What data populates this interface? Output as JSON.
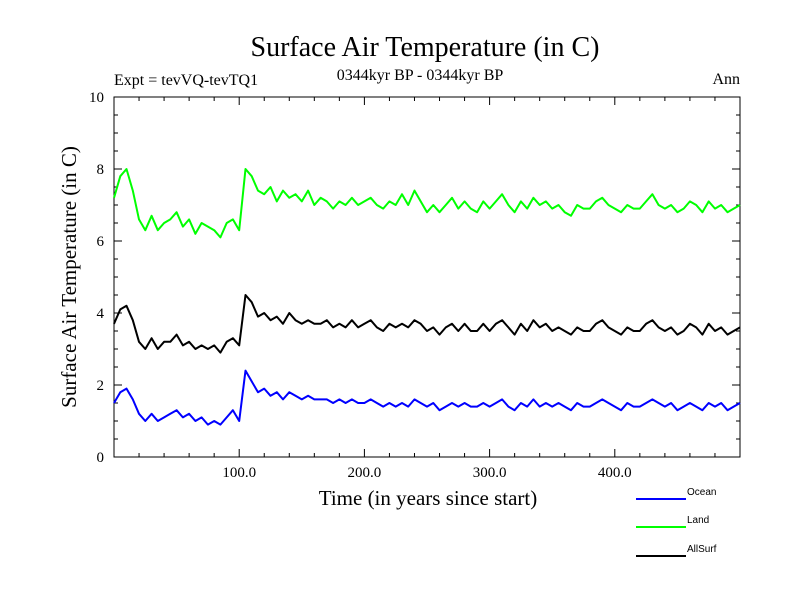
{
  "header": {
    "title": "Surface Air Temperature (in C)",
    "experiment": "Expt = tevVQ-tevTQ1",
    "period": "0344kyr BP - 0344kyr BP",
    "season": "Ann"
  },
  "chart_data": {
    "type": "line",
    "title": "Surface Air Temperature (in C)",
    "xlabel": "Time (in years since start)",
    "ylabel": "Surface Air Temperature (in C)",
    "xlim": [
      0,
      500
    ],
    "ylim": [
      0,
      10
    ],
    "x_ticks": [
      100,
      200,
      300,
      400
    ],
    "x_tick_labels": [
      "100.0",
      "200.0",
      "300.0",
      "400.0"
    ],
    "y_ticks": [
      0,
      2,
      4,
      6,
      8,
      10
    ],
    "y_tick_labels": [
      "0",
      "2",
      "4",
      "6",
      "8",
      "10"
    ],
    "grid": false,
    "legend_position": "bottom-right",
    "x": [
      0,
      5,
      10,
      15,
      20,
      25,
      30,
      35,
      40,
      45,
      50,
      55,
      60,
      65,
      70,
      75,
      80,
      85,
      90,
      95,
      100,
      105,
      110,
      115,
      120,
      125,
      130,
      135,
      140,
      145,
      150,
      155,
      160,
      165,
      170,
      175,
      180,
      185,
      190,
      195,
      200,
      205,
      210,
      215,
      220,
      225,
      230,
      235,
      240,
      245,
      250,
      255,
      260,
      265,
      270,
      275,
      280,
      285,
      290,
      295,
      300,
      305,
      310,
      315,
      320,
      325,
      330,
      335,
      340,
      345,
      350,
      355,
      360,
      365,
      370,
      375,
      380,
      385,
      390,
      395,
      400,
      405,
      410,
      415,
      420,
      425,
      430,
      435,
      440,
      445,
      450,
      455,
      460,
      465,
      470,
      475,
      480,
      485,
      490,
      495,
      500
    ],
    "series": [
      {
        "name": "Ocean",
        "color": "#0000ff",
        "values": [
          1.5,
          1.8,
          1.9,
          1.6,
          1.2,
          1.0,
          1.2,
          1.0,
          1.1,
          1.2,
          1.3,
          1.1,
          1.2,
          1.0,
          1.1,
          0.9,
          1.0,
          0.9,
          1.1,
          1.3,
          1.0,
          2.4,
          2.1,
          1.8,
          1.9,
          1.7,
          1.8,
          1.6,
          1.8,
          1.7,
          1.6,
          1.7,
          1.6,
          1.6,
          1.6,
          1.5,
          1.6,
          1.5,
          1.6,
          1.5,
          1.5,
          1.6,
          1.5,
          1.4,
          1.5,
          1.4,
          1.5,
          1.4,
          1.6,
          1.5,
          1.4,
          1.5,
          1.3,
          1.4,
          1.5,
          1.4,
          1.5,
          1.4,
          1.4,
          1.5,
          1.4,
          1.5,
          1.6,
          1.4,
          1.3,
          1.5,
          1.4,
          1.6,
          1.4,
          1.5,
          1.4,
          1.5,
          1.4,
          1.3,
          1.5,
          1.4,
          1.4,
          1.5,
          1.6,
          1.5,
          1.4,
          1.3,
          1.5,
          1.4,
          1.4,
          1.5,
          1.6,
          1.5,
          1.4,
          1.5,
          1.3,
          1.4,
          1.5,
          1.4,
          1.3,
          1.5,
          1.4,
          1.5,
          1.3,
          1.4,
          1.5
        ]
      },
      {
        "name": "Land",
        "color": "#00ff00",
        "values": [
          7.2,
          7.8,
          8.0,
          7.4,
          6.6,
          6.3,
          6.7,
          6.3,
          6.5,
          6.6,
          6.8,
          6.4,
          6.6,
          6.2,
          6.5,
          6.4,
          6.3,
          6.1,
          6.5,
          6.6,
          6.3,
          8.0,
          7.8,
          7.4,
          7.3,
          7.5,
          7.1,
          7.4,
          7.2,
          7.3,
          7.1,
          7.4,
          7.0,
          7.2,
          7.1,
          6.9,
          7.1,
          7.0,
          7.2,
          7.0,
          7.1,
          7.2,
          7.0,
          6.9,
          7.1,
          7.0,
          7.3,
          7.0,
          7.4,
          7.1,
          6.8,
          7.0,
          6.8,
          7.0,
          7.2,
          6.9,
          7.1,
          6.9,
          6.8,
          7.1,
          6.9,
          7.1,
          7.3,
          7.0,
          6.8,
          7.1,
          6.9,
          7.2,
          7.0,
          7.1,
          6.9,
          7.0,
          6.8,
          6.7,
          7.0,
          6.9,
          6.9,
          7.1,
          7.2,
          7.0,
          6.9,
          6.8,
          7.0,
          6.9,
          6.9,
          7.1,
          7.3,
          7.0,
          6.9,
          7.0,
          6.8,
          6.9,
          7.1,
          7.0,
          6.8,
          7.1,
          6.9,
          7.0,
          6.8,
          6.9,
          7.0
        ]
      },
      {
        "name": "AllSurf",
        "color": "#000000",
        "values": [
          3.7,
          4.1,
          4.2,
          3.8,
          3.2,
          3.0,
          3.3,
          3.0,
          3.2,
          3.2,
          3.4,
          3.1,
          3.2,
          3.0,
          3.1,
          3.0,
          3.1,
          2.9,
          3.2,
          3.3,
          3.1,
          4.5,
          4.3,
          3.9,
          4.0,
          3.8,
          3.9,
          3.7,
          4.0,
          3.8,
          3.7,
          3.8,
          3.7,
          3.7,
          3.8,
          3.6,
          3.7,
          3.6,
          3.8,
          3.6,
          3.7,
          3.8,
          3.6,
          3.5,
          3.7,
          3.6,
          3.7,
          3.6,
          3.8,
          3.7,
          3.5,
          3.6,
          3.4,
          3.6,
          3.7,
          3.5,
          3.7,
          3.5,
          3.5,
          3.7,
          3.5,
          3.7,
          3.8,
          3.6,
          3.4,
          3.7,
          3.5,
          3.8,
          3.6,
          3.7,
          3.5,
          3.6,
          3.5,
          3.4,
          3.6,
          3.5,
          3.5,
          3.7,
          3.8,
          3.6,
          3.5,
          3.4,
          3.6,
          3.5,
          3.5,
          3.7,
          3.8,
          3.6,
          3.5,
          3.6,
          3.4,
          3.5,
          3.7,
          3.6,
          3.4,
          3.7,
          3.5,
          3.6,
          3.4,
          3.5,
          3.6
        ]
      }
    ]
  }
}
